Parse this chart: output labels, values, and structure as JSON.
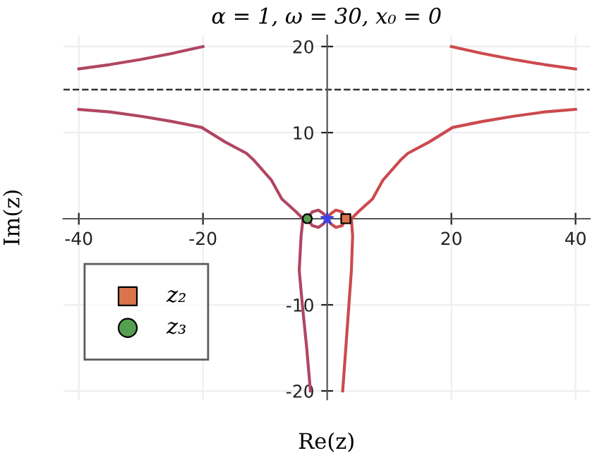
{
  "chart_data": {
    "type": "line",
    "title": "α = 1, ω = 30, x₀ = 0",
    "xlabel": "Re(z)",
    "ylabel": "Im(z)",
    "series": [
      {
        "color": "#b04662",
        "x": [
          -40,
          -35,
          -30,
          -25,
          -20,
          null,
          -40,
          -35,
          -30,
          -25,
          -20.2,
          -16.4,
          -13,
          -11.8,
          -9,
          -7.3,
          -5,
          -3.9,
          null,
          -3.2,
          -2.4,
          -1.4,
          -0.6,
          0,
          null,
          -3.2,
          -2.4,
          -1.4,
          -0.6,
          0,
          null,
          -3.9,
          -4.2,
          -4.5,
          -4,
          -3.3,
          -2.7
        ],
        "values": [
          17.4,
          17.9,
          18.5,
          19.2,
          20,
          null,
          12.7,
          12.4,
          11.9,
          11.3,
          10.6,
          8.9,
          7.6,
          6.8,
          4.5,
          2.3,
          0.8,
          0,
          null,
          0,
          0.8,
          1,
          0.6,
          0,
          null,
          0,
          -0.8,
          -1,
          -0.6,
          0,
          null,
          0,
          -2,
          -6,
          -10,
          -15,
          -20
        ]
      },
      {
        "color": "#cc4a4e",
        "x": [
          40,
          35,
          30,
          25,
          20,
          null,
          40,
          35,
          30,
          25,
          20.2,
          16.4,
          13,
          11.8,
          9,
          7.3,
          5,
          3.9,
          null,
          3,
          2.4,
          1.4,
          0.6,
          0,
          null,
          3,
          2.4,
          1.4,
          0.6,
          0,
          null,
          3.9,
          4.1,
          3.9,
          3.5,
          3,
          2.5
        ],
        "values": [
          17.4,
          17.9,
          18.5,
          19.2,
          20,
          null,
          12.7,
          12.4,
          11.9,
          11.3,
          10.6,
          8.9,
          7.6,
          6.8,
          4.5,
          2.3,
          0.8,
          0,
          null,
          0,
          0.8,
          1,
          0.6,
          0,
          null,
          0,
          -0.8,
          -1,
          -0.6,
          0,
          null,
          0,
          -2,
          -6,
          -10,
          -15,
          -20
        ]
      },
      {
        "type": "scatter",
        "name": "z₂",
        "color": "#d9744c",
        "marker": "square",
        "x": [
          3
        ],
        "values": [
          0
        ]
      },
      {
        "type": "scatter",
        "name": "z₃",
        "color": "#55a050",
        "marker": "circle",
        "x": [
          -3.2
        ],
        "values": [
          0
        ]
      },
      {
        "type": "scatter",
        "color": "#4040e0",
        "marker": "star",
        "x": [
          0
        ],
        "values": [
          0
        ]
      }
    ],
    "xlim": [
      -42.5,
      42.3
    ],
    "ylim": [
      -21,
      21.3
    ],
    "xticks": [
      -40,
      -20,
      20,
      40
    ],
    "yticks": [
      -20,
      -10,
      10,
      20
    ],
    "ref_lines": [
      {
        "axis": "y",
        "value": 15,
        "color": "#333333",
        "line_style": "dashed"
      }
    ],
    "grid": true,
    "legend": "bottom left"
  }
}
